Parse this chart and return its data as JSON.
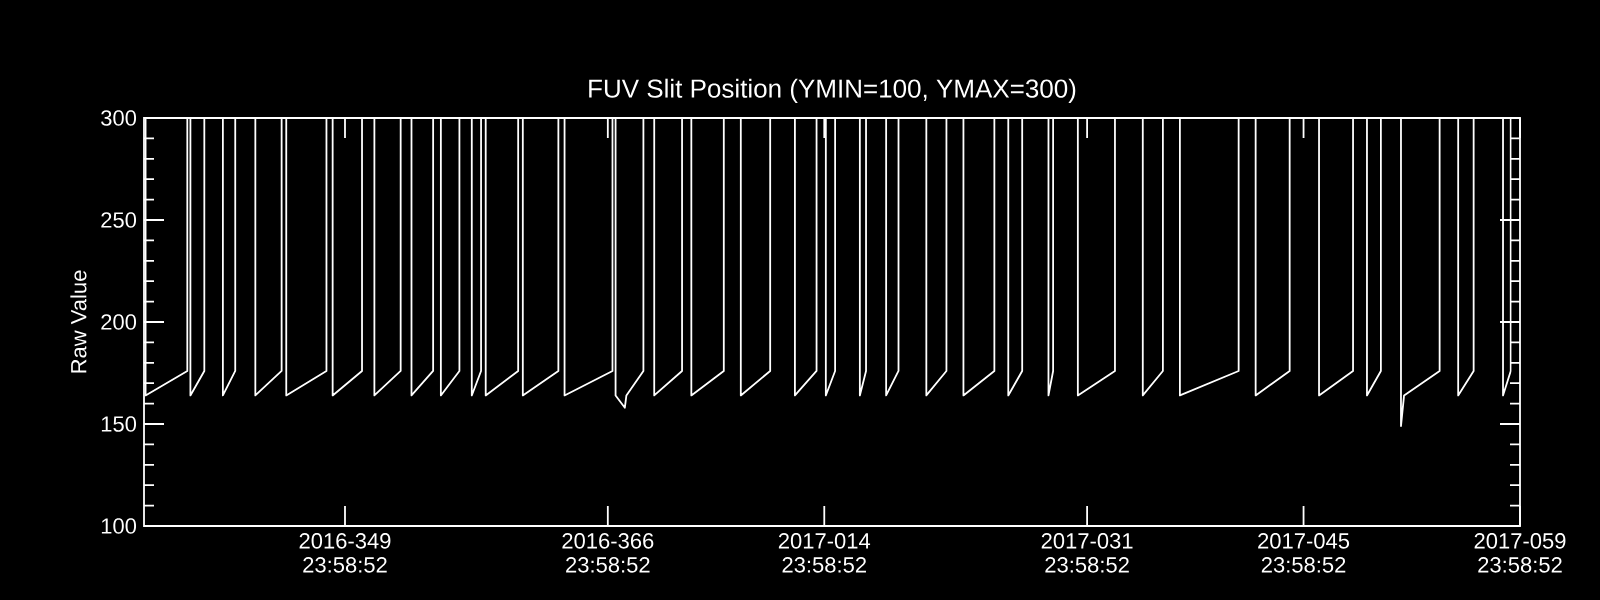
{
  "chart_data": {
    "type": "line",
    "title": "FUV Slit Position (YMIN=100, YMAX=300)",
    "ylabel": "Raw Value",
    "color": "#ffffff",
    "x": [
      "2016-12-02T02:24",
      "2016-12-02T02:24",
      "2016-12-04T19:12",
      "2016-12-04T19:12",
      "2016-12-05T00:00",
      "2016-12-05T00:00",
      "2016-12-05T21:36",
      "2016-12-05T21:36",
      "2016-12-07T02:24",
      "2016-12-07T02:24",
      "2016-12-07T21:36",
      "2016-12-07T21:36",
      "2016-12-09T04:48",
      "2016-12-09T04:48",
      "2016-12-10T21:36",
      "2016-12-10T21:36",
      "2016-12-11T04:48",
      "2016-12-11T04:48",
      "2016-12-13T19:12",
      "2016-12-13T19:12",
      "2016-12-14T04:48",
      "2016-12-14T04:48",
      "2016-12-16T02:24",
      "2016-12-16T02:24",
      "2016-12-16T21:36",
      "2016-12-16T21:36",
      "2016-12-18T14:24",
      "2016-12-18T14:24",
      "2016-12-19T07:12",
      "2016-12-19T07:12",
      "2016-12-20T16:48",
      "2016-12-20T16:48",
      "2016-12-21T04:48",
      "2016-12-21T04:48",
      "2016-12-22T09:36",
      "2016-12-22T09:36",
      "2016-12-23T04:48",
      "2016-12-23T04:48",
      "2016-12-23T19:12",
      "2016-12-23T19:12",
      "2016-12-24T02:24",
      "2016-12-24T02:24",
      "2016-12-26T04:48",
      "2016-12-26T04:48",
      "2016-12-26T12:00",
      "2016-12-26T12:00",
      "2016-12-28T19:12",
      "2016-12-28T19:12",
      "2016-12-29T04:48",
      "2016-12-29T04:48",
      "2017-01-01T07:12",
      "2017-01-01T07:12",
      "2017-01-01T12:00",
      "2017-01-01T12:00",
      "2017-01-02T02:24",
      "2017-01-02T04:48",
      "2017-01-03T07:12",
      "2017-01-03T07:12",
      "2017-01-04T00:00",
      "2017-01-04T00:00",
      "2017-01-05T19:12",
      "2017-01-05T19:12",
      "2017-01-06T09:36",
      "2017-01-06T09:36",
      "2017-01-08T12:00",
      "2017-01-08T12:00",
      "2017-01-09T14:24",
      "2017-01-09T14:24",
      "2017-01-11T12:00",
      "2017-01-11T12:00",
      "2017-01-13T02:24",
      "2017-01-13T02:24",
      "2017-01-14T12:00",
      "2017-01-14T12:00",
      "2017-01-15T02:24",
      "2017-01-15T02:24",
      "2017-01-15T16:48",
      "2017-01-15T16:48",
      "2017-01-17T07:12",
      "2017-01-17T07:12",
      "2017-01-17T16:48",
      "2017-01-17T16:48",
      "2017-01-19T00:00",
      "2017-01-19T00:00",
      "2017-01-19T19:12",
      "2017-01-19T19:12",
      "2017-01-21T14:24",
      "2017-01-21T14:24",
      "2017-01-22T21:36",
      "2017-01-22T21:36",
      "2017-01-24T00:00",
      "2017-01-24T00:00",
      "2017-01-26T00:00",
      "2017-01-26T00:00",
      "2017-01-26T21:36",
      "2017-01-26T21:36",
      "2017-01-27T19:12",
      "2017-01-27T19:12",
      "2017-01-29T12:00",
      "2017-01-29T12:00",
      "2017-01-29T19:12",
      "2017-01-29T19:12",
      "2017-01-31T09:36",
      "2017-01-31T09:36",
      "2017-02-02T19:12",
      "2017-02-02T19:12",
      "2017-02-04T14:24",
      "2017-02-04T14:24",
      "2017-02-05T21:36",
      "2017-02-05T21:36",
      "2017-02-07T00:00",
      "2017-02-07T00:00",
      "2017-02-10T19:12",
      "2017-02-10T19:12",
      "2017-02-11T21:36",
      "2017-02-11T21:36",
      "2017-02-14T02:24",
      "2017-02-14T02:24",
      "2017-02-16T00:00",
      "2017-02-16T00:00",
      "2017-02-18T04:48",
      "2017-02-18T04:48",
      "2017-02-19T02:24",
      "2017-02-19T02:24",
      "2017-02-20T00:00",
      "2017-02-20T00:00",
      "2017-02-21T07:12",
      "2017-02-21T07:12",
      "2017-02-21T12:00",
      "2017-02-23T19:12",
      "2017-02-23T19:12",
      "2017-02-25T00:00",
      "2017-02-25T00:00",
      "2017-02-26T00:00",
      "2017-02-26T00:00",
      "2017-02-27T21:36",
      "2017-02-27T21:36",
      "2017-02-28T09:36",
      "2017-02-28T09:36"
    ],
    "values": [
      300,
      164,
      176,
      300,
      300,
      164,
      176,
      300,
      300,
      164,
      176,
      300,
      300,
      164,
      176,
      300,
      300,
      164,
      176,
      300,
      300,
      164,
      176,
      300,
      300,
      164,
      176,
      300,
      300,
      164,
      176,
      300,
      300,
      164,
      176,
      300,
      300,
      164,
      176,
      300,
      300,
      164,
      176,
      300,
      300,
      164,
      176,
      300,
      300,
      164,
      176,
      300,
      300,
      164,
      158,
      164,
      176,
      300,
      300,
      164,
      176,
      300,
      300,
      164,
      176,
      300,
      300,
      164,
      176,
      300,
      300,
      164,
      176,
      300,
      300,
      164,
      176,
      300,
      300,
      164,
      176,
      300,
      300,
      164,
      176,
      300,
      300,
      164,
      176,
      300,
      300,
      164,
      176,
      300,
      300,
      164,
      176,
      300,
      300,
      164,
      176,
      300,
      300,
      164,
      176,
      300,
      300,
      164,
      176,
      300,
      300,
      164,
      176,
      300,
      300,
      164,
      176,
      300,
      300,
      164,
      176,
      300,
      300,
      164,
      176,
      300,
      300,
      149,
      164,
      176,
      300,
      300,
      164,
      176,
      300,
      300,
      164,
      176,
      300
    ],
    "xlim": [
      "2016-12-01T23:58",
      "2017-02-28T23:58"
    ],
    "ylim": [
      100,
      300
    ],
    "xticks": [
      {
        "value": "2016-12-14T23:58",
        "label": "2016-349 23:58:52"
      },
      {
        "value": "2016-12-31T23:58",
        "label": "2016-366 23:58:52"
      },
      {
        "value": "2017-01-14T23:58",
        "label": "2017-014 23:58:52"
      },
      {
        "value": "2017-01-31T23:58",
        "label": "2017-031 23:58:52"
      },
      {
        "value": "2017-02-14T23:58",
        "label": "2017-045 23:58:52"
      },
      {
        "value": "2017-02-28T23:58",
        "label": "2017-059 23:58:52"
      }
    ],
    "yticks": [
      100,
      150,
      200,
      250,
      300
    ]
  }
}
